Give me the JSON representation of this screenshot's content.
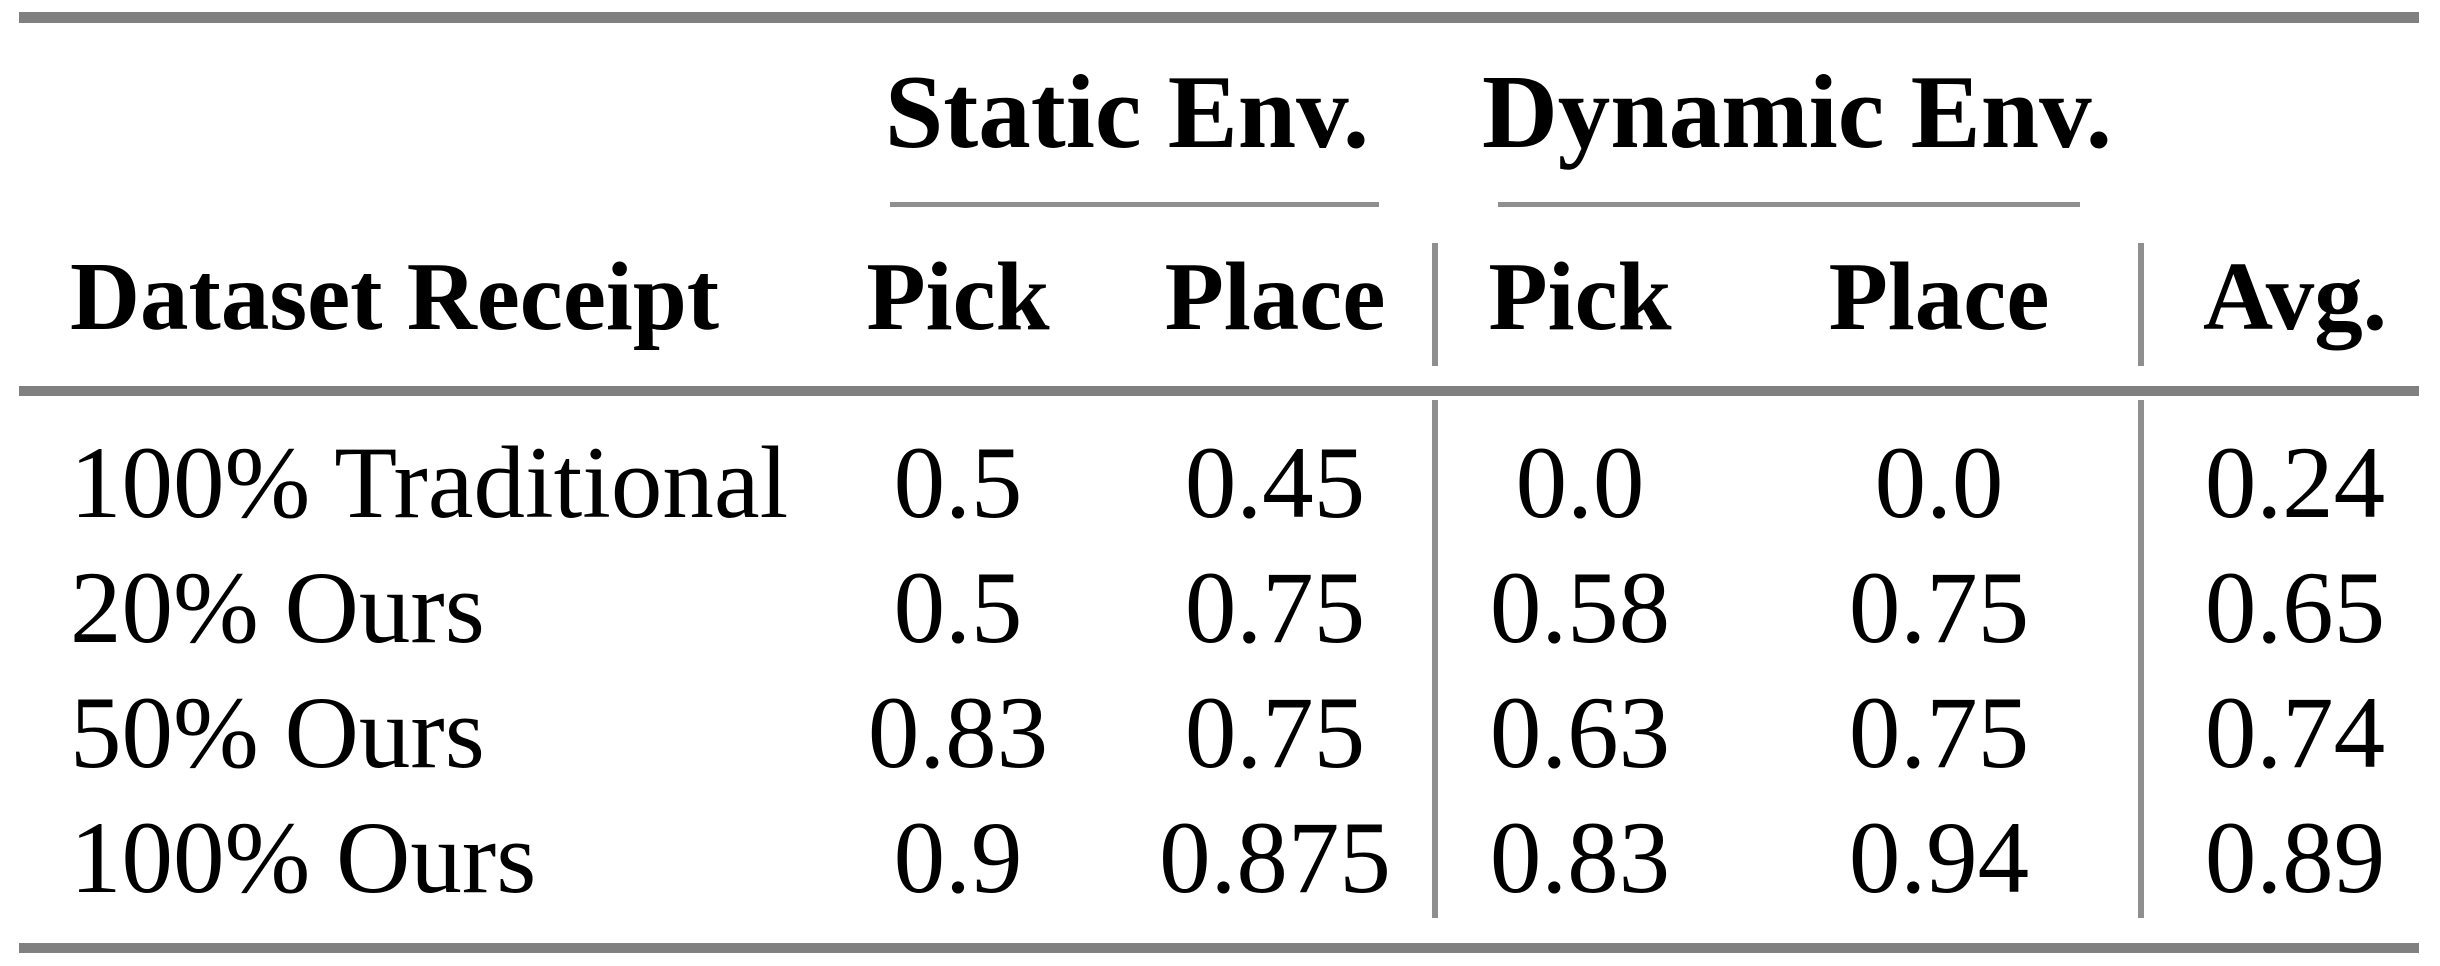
{
  "page": {
    "background": "#ffffff",
    "text_color": "#000000"
  },
  "rules": {
    "thick_color": "#808080",
    "thin_color": "#8f8f8f"
  },
  "table": {
    "row_label_header": "Dataset Receipt",
    "groups": [
      {
        "label": "Static Env.",
        "columns": [
          "Pick",
          "Place"
        ]
      },
      {
        "label": "Dynamic Env.",
        "columns": [
          "Pick",
          "Place"
        ]
      }
    ],
    "avg_header": "Avg.",
    "rows": [
      {
        "label": "100% Traditional",
        "values": [
          "0.5",
          "0.45",
          "0.0",
          "0.0",
          "0.24"
        ]
      },
      {
        "label": "20% Ours",
        "values": [
          "0.5",
          "0.75",
          "0.58",
          "0.75",
          "0.65"
        ]
      },
      {
        "label": "50% Ours",
        "values": [
          "0.83",
          "0.75",
          "0.63",
          "0.75",
          "0.74"
        ]
      },
      {
        "label": "100% Ours",
        "values": [
          "0.9",
          "0.875",
          "0.83",
          "0.94",
          "0.89"
        ]
      }
    ]
  }
}
